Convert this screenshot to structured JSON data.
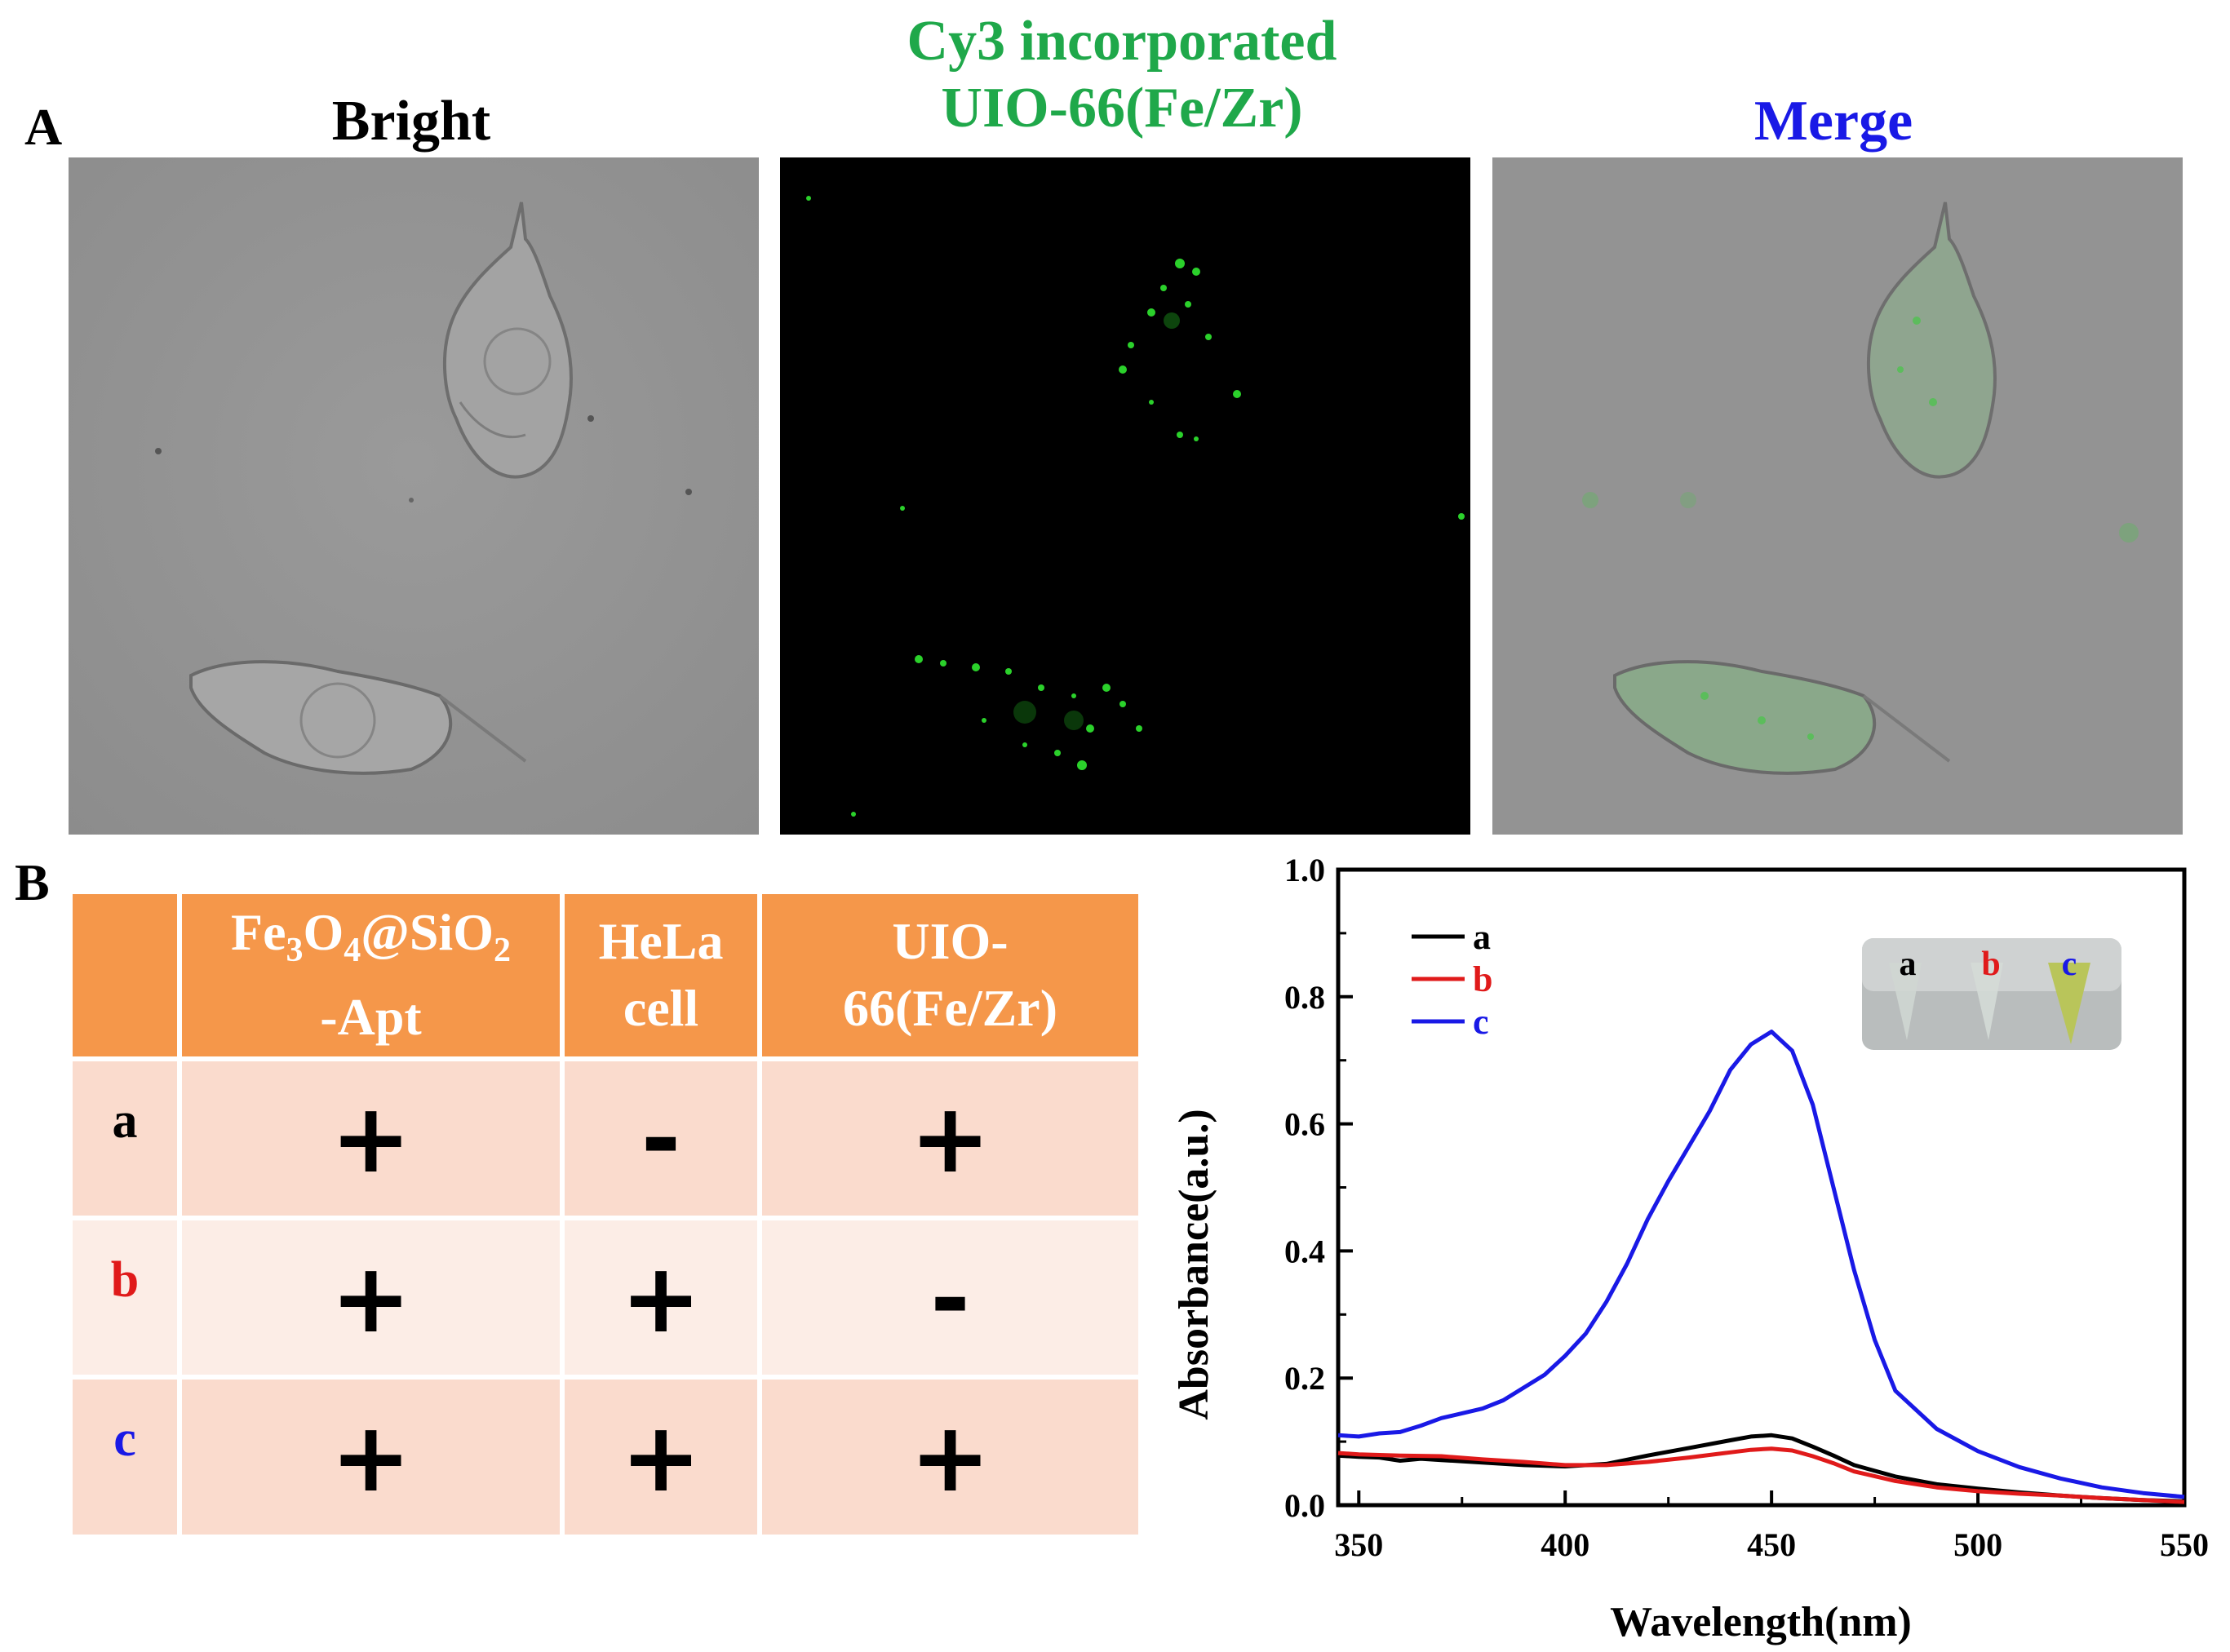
{
  "panel_labels": {
    "a": "A",
    "b": "B"
  },
  "micro_titles": {
    "bright": "Bright",
    "cy3_line1": "Cy3 incorporated",
    "cy3_line2": "UIO-66(Fe/Zr)",
    "merge": "Merge"
  },
  "colors": {
    "cy3_title": "#1FA84A",
    "merge_title": "#1919E6",
    "table_header": "#F5974A",
    "row_a": "#000000",
    "row_b": "#E01A1A",
    "row_c": "#1919E6"
  },
  "table": {
    "headers": [
      {
        "pre": "Fe",
        "s1": "3",
        "mid": "O",
        "s2": "4",
        "mid2": "@SiO",
        "s3": "2",
        "line2": "-Apt"
      },
      {
        "line1": "HeLa",
        "line2": "cell"
      },
      {
        "line1": "UIO-",
        "line2": "66(Fe/Zr)"
      }
    ],
    "rows": [
      {
        "label": "a",
        "signs": [
          "+",
          "-",
          "+"
        ]
      },
      {
        "label": "b",
        "signs": [
          "+",
          "+",
          "-"
        ]
      },
      {
        "label": "c",
        "signs": [
          "+",
          "+",
          "+"
        ]
      }
    ]
  },
  "inset": {
    "labels": [
      "a",
      "b",
      "c"
    ]
  },
  "chart_data": {
    "type": "line",
    "xlabel": "Wavelength(nm)",
    "ylabel": "Absorbance(a.u.)",
    "xlim": [
      345,
      550
    ],
    "ylim": [
      0,
      1.0
    ],
    "xticks": [
      350,
      400,
      450,
      500,
      550
    ],
    "yticks": [
      0.0,
      0.2,
      0.4,
      0.6,
      0.8,
      1.0
    ],
    "ytick_labels": [
      "0.0",
      "0.2",
      "0.4",
      "0.6",
      "0.8",
      "1.0"
    ],
    "legend_position": "top-left",
    "grid": false,
    "series": [
      {
        "name": "a",
        "color": "#000000",
        "points": [
          [
            345,
            0.078
          ],
          [
            350,
            0.076
          ],
          [
            355,
            0.075
          ],
          [
            360,
            0.07
          ],
          [
            365,
            0.073
          ],
          [
            370,
            0.071
          ],
          [
            380,
            0.067
          ],
          [
            390,
            0.063
          ],
          [
            400,
            0.061
          ],
          [
            410,
            0.065
          ],
          [
            420,
            0.078
          ],
          [
            430,
            0.09
          ],
          [
            440,
            0.102
          ],
          [
            445,
            0.108
          ],
          [
            450,
            0.11
          ],
          [
            455,
            0.105
          ],
          [
            460,
            0.092
          ],
          [
            465,
            0.078
          ],
          [
            470,
            0.063
          ],
          [
            480,
            0.045
          ],
          [
            490,
            0.033
          ],
          [
            500,
            0.026
          ],
          [
            510,
            0.02
          ],
          [
            520,
            0.015
          ],
          [
            530,
            0.011
          ],
          [
            540,
            0.008
          ],
          [
            550,
            0.006
          ]
        ]
      },
      {
        "name": "b",
        "color": "#E01A1A",
        "points": [
          [
            345,
            0.082
          ],
          [
            350,
            0.08
          ],
          [
            355,
            0.079
          ],
          [
            360,
            0.078
          ],
          [
            370,
            0.077
          ],
          [
            380,
            0.072
          ],
          [
            390,
            0.068
          ],
          [
            400,
            0.063
          ],
          [
            410,
            0.063
          ],
          [
            420,
            0.068
          ],
          [
            430,
            0.075
          ],
          [
            440,
            0.083
          ],
          [
            445,
            0.087
          ],
          [
            450,
            0.089
          ],
          [
            455,
            0.086
          ],
          [
            460,
            0.077
          ],
          [
            465,
            0.066
          ],
          [
            470,
            0.053
          ],
          [
            480,
            0.038
          ],
          [
            490,
            0.028
          ],
          [
            500,
            0.022
          ],
          [
            510,
            0.018
          ],
          [
            520,
            0.015
          ],
          [
            530,
            0.011
          ],
          [
            540,
            0.008
          ],
          [
            550,
            0.005
          ]
        ]
      },
      {
        "name": "c",
        "color": "#1919E6",
        "points": [
          [
            345,
            0.11
          ],
          [
            350,
            0.108
          ],
          [
            355,
            0.113
          ],
          [
            360,
            0.115
          ],
          [
            365,
            0.125
          ],
          [
            370,
            0.137
          ],
          [
            380,
            0.152
          ],
          [
            385,
            0.165
          ],
          [
            390,
            0.185
          ],
          [
            395,
            0.205
          ],
          [
            400,
            0.235
          ],
          [
            405,
            0.27
          ],
          [
            410,
            0.32
          ],
          [
            415,
            0.38
          ],
          [
            420,
            0.45
          ],
          [
            425,
            0.51
          ],
          [
            430,
            0.565
          ],
          [
            435,
            0.62
          ],
          [
            440,
            0.685
          ],
          [
            445,
            0.725
          ],
          [
            450,
            0.745
          ],
          [
            455,
            0.715
          ],
          [
            460,
            0.63
          ],
          [
            465,
            0.5
          ],
          [
            470,
            0.37
          ],
          [
            475,
            0.26
          ],
          [
            480,
            0.18
          ],
          [
            490,
            0.12
          ],
          [
            500,
            0.085
          ],
          [
            510,
            0.06
          ],
          [
            520,
            0.042
          ],
          [
            530,
            0.028
          ],
          [
            540,
            0.019
          ],
          [
            550,
            0.013
          ]
        ]
      }
    ]
  }
}
